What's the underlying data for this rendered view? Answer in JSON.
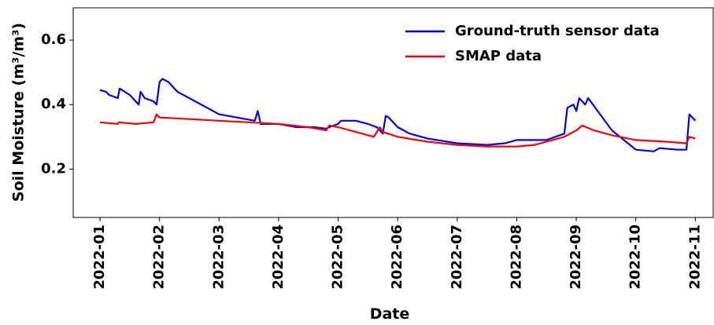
{
  "chart_data": {
    "type": "line",
    "x_label": "Date",
    "y_label": "Soil Moisture (m³/m³)",
    "xlim": [
      0.55,
      11.3
    ],
    "ylim": [
      0.05,
      0.7
    ],
    "xticks": [
      {
        "value": 1,
        "label": "2022-01"
      },
      {
        "value": 2,
        "label": "2022-02"
      },
      {
        "value": 3,
        "label": "2022-03"
      },
      {
        "value": 4,
        "label": "2022-04"
      },
      {
        "value": 5,
        "label": "2022-05"
      },
      {
        "value": 6,
        "label": "2022-06"
      },
      {
        "value": 7,
        "label": "2022-07"
      },
      {
        "value": 8,
        "label": "2022-08"
      },
      {
        "value": 9,
        "label": "2022-09"
      },
      {
        "value": 10,
        "label": "2022-10"
      },
      {
        "value": 11,
        "label": "2022-11"
      }
    ],
    "yticks": [
      0.2,
      0.4,
      0.6
    ],
    "legend": "upper right",
    "series": [
      {
        "name": "Ground-truth sensor data",
        "color": "#0000ff",
        "x": [
          1.0,
          1.1,
          1.15,
          1.3,
          1.33,
          1.5,
          1.6,
          1.65,
          1.68,
          1.75,
          1.9,
          1.95,
          2.0,
          2.05,
          2.15,
          2.3,
          2.6,
          2.8,
          3.0,
          3.3,
          3.6,
          3.65,
          3.7,
          4.0,
          4.3,
          4.6,
          4.8,
          4.85,
          5.0,
          5.05,
          5.3,
          5.5,
          5.65,
          5.75,
          5.8,
          5.85,
          6.0,
          6.2,
          6.5,
          7.0,
          7.5,
          7.8,
          8.0,
          8.2,
          8.5,
          8.8,
          8.85,
          8.95,
          9.0,
          9.05,
          9.15,
          9.2,
          9.4,
          9.6,
          9.8,
          10.0,
          10.3,
          10.4,
          10.7,
          10.85,
          10.9,
          11.0
        ],
        "values": [
          0.445,
          0.44,
          0.43,
          0.42,
          0.45,
          0.43,
          0.41,
          0.4,
          0.44,
          0.42,
          0.41,
          0.4,
          0.47,
          0.48,
          0.47,
          0.44,
          0.41,
          0.39,
          0.37,
          0.36,
          0.35,
          0.38,
          0.34,
          0.34,
          0.33,
          0.33,
          0.325,
          0.33,
          0.34,
          0.35,
          0.35,
          0.34,
          0.33,
          0.31,
          0.365,
          0.36,
          0.33,
          0.31,
          0.295,
          0.28,
          0.275,
          0.28,
          0.29,
          0.29,
          0.29,
          0.31,
          0.39,
          0.4,
          0.38,
          0.42,
          0.4,
          0.42,
          0.37,
          0.32,
          0.29,
          0.26,
          0.255,
          0.265,
          0.26,
          0.26,
          0.37,
          0.35
        ]
      },
      {
        "name": "SMAP data",
        "color": "#ff0000",
        "x": [
          1.0,
          1.3,
          1.32,
          1.6,
          1.9,
          1.95,
          2.0,
          2.5,
          3.0,
          3.5,
          4.0,
          4.5,
          4.8,
          4.85,
          5.0,
          5.3,
          5.6,
          5.7,
          5.75,
          6.0,
          6.5,
          7.0,
          7.5,
          8.0,
          8.3,
          8.5,
          8.8,
          8.9,
          9.0,
          9.1,
          9.3,
          9.6,
          10.0,
          10.5,
          10.85,
          10.9,
          11.0
        ],
        "values": [
          0.345,
          0.34,
          0.345,
          0.34,
          0.345,
          0.37,
          0.36,
          0.355,
          0.35,
          0.345,
          0.34,
          0.33,
          0.32,
          0.335,
          0.33,
          0.315,
          0.3,
          0.33,
          0.315,
          0.3,
          0.285,
          0.275,
          0.27,
          0.27,
          0.275,
          0.285,
          0.3,
          0.31,
          0.32,
          0.335,
          0.32,
          0.305,
          0.29,
          0.285,
          0.28,
          0.3,
          0.295
        ]
      }
    ]
  }
}
